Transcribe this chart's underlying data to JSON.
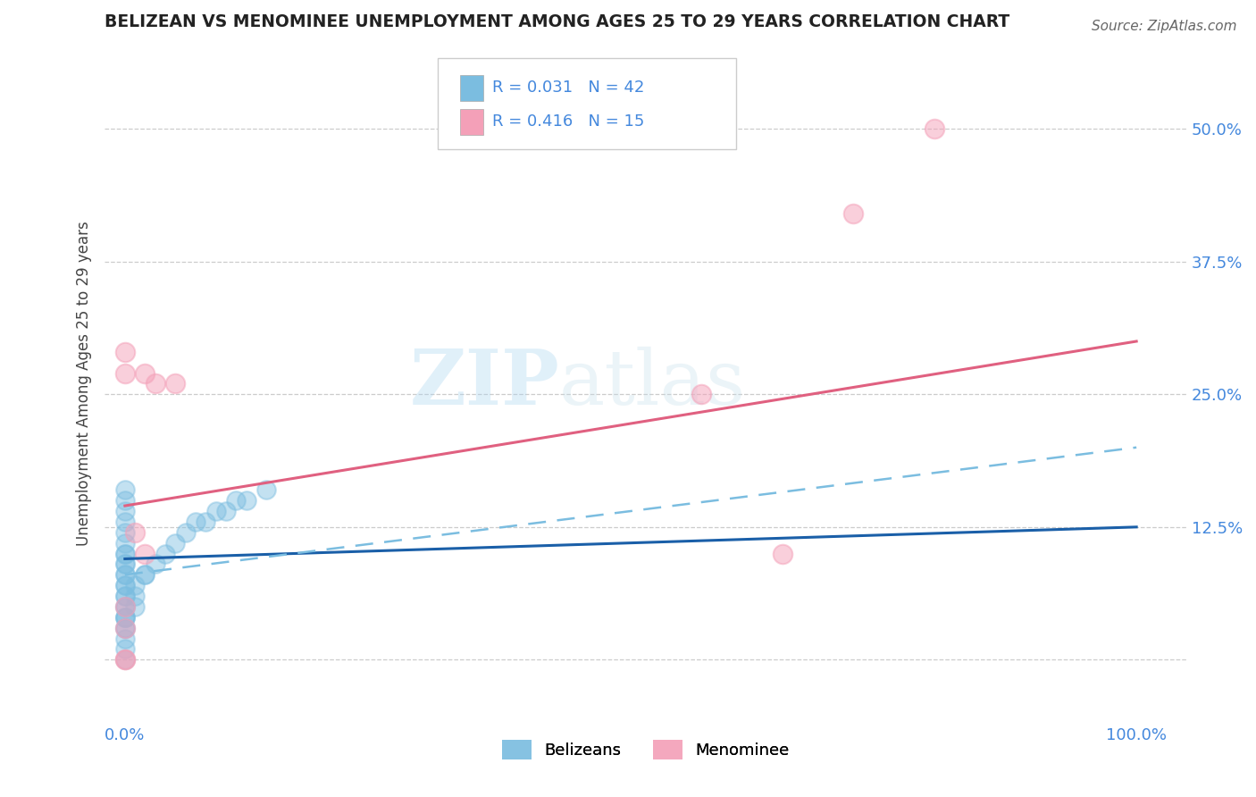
{
  "title": "BELIZEAN VS MENOMINEE UNEMPLOYMENT AMONG AGES 25 TO 29 YEARS CORRELATION CHART",
  "source": "Source: ZipAtlas.com",
  "ylabel": "Unemployment Among Ages 25 to 29 years",
  "ytick_values": [
    0,
    0.125,
    0.25,
    0.375,
    0.5
  ],
  "ytick_labels": [
    "",
    "12.5%",
    "25.0%",
    "37.5%",
    "50.0%"
  ],
  "xlim": [
    -0.02,
    1.05
  ],
  "ylim": [
    -0.06,
    0.58
  ],
  "legend_r1": "R = 0.031",
  "legend_n1": "N = 42",
  "legend_r2": "R = 0.416",
  "legend_n2": "N = 15",
  "belizean_color": "#7bbde0",
  "menominee_color": "#f4a0b8",
  "trend_blue_solid": "#1a5fa8",
  "trend_blue_dashed": "#7bbde0",
  "trend_pink_solid": "#e06080",
  "watermark_zip": "ZIP",
  "watermark_atlas": "atlas",
  "bg_color": "#ffffff",
  "belizean_x": [
    0.0,
    0.0,
    0.0,
    0.0,
    0.0,
    0.0,
    0.0,
    0.0,
    0.0,
    0.0,
    0.0,
    0.0,
    0.0,
    0.0,
    0.0,
    0.0,
    0.0,
    0.0,
    0.0,
    0.0,
    0.0,
    0.0,
    0.0,
    0.0,
    0.0,
    0.0,
    0.01,
    0.01,
    0.01,
    0.02,
    0.02,
    0.03,
    0.04,
    0.05,
    0.06,
    0.07,
    0.08,
    0.09,
    0.1,
    0.11,
    0.12,
    0.14
  ],
  "belizean_y": [
    0.0,
    0.01,
    0.02,
    0.03,
    0.03,
    0.04,
    0.04,
    0.05,
    0.05,
    0.06,
    0.06,
    0.07,
    0.07,
    0.08,
    0.08,
    0.09,
    0.09,
    0.1,
    0.1,
    0.11,
    0.12,
    0.13,
    0.14,
    0.15,
    0.16,
    0.04,
    0.05,
    0.06,
    0.07,
    0.08,
    0.08,
    0.09,
    0.1,
    0.11,
    0.12,
    0.13,
    0.13,
    0.14,
    0.14,
    0.15,
    0.15,
    0.16
  ],
  "menominee_x": [
    0.0,
    0.0,
    0.0,
    0.0,
    0.0,
    0.02,
    0.03,
    0.05,
    0.57,
    0.65,
    0.72,
    0.8,
    0.0,
    0.01,
    0.02
  ],
  "menominee_y": [
    0.0,
    0.03,
    0.05,
    0.27,
    0.29,
    0.27,
    0.26,
    0.26,
    0.25,
    0.1,
    0.42,
    0.5,
    0.0,
    0.12,
    0.1
  ]
}
